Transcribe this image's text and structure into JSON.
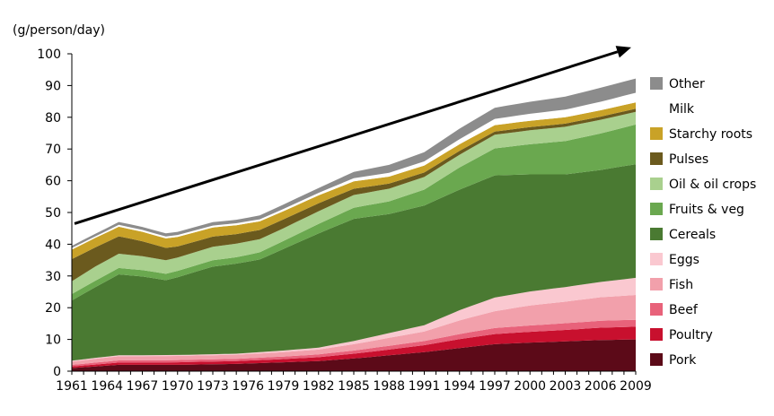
{
  "chart_data": {
    "type": "area",
    "stacked": true,
    "ylabel": "(g/person/day)",
    "ylim": [
      0,
      100
    ],
    "yticks": [
      0,
      10,
      20,
      30,
      40,
      50,
      60,
      70,
      80,
      90,
      100
    ],
    "xlim": [
      1961,
      2009
    ],
    "xticks": [
      1961,
      1964,
      1967,
      1970,
      1973,
      1976,
      1979,
      1982,
      1985,
      1988,
      1991,
      1994,
      1997,
      2000,
      2003,
      2006,
      2009
    ],
    "legend_position": "right",
    "trend_arrow": {
      "from": [
        1961,
        46.5
      ],
      "to": [
        2009,
        102
      ]
    },
    "series": [
      {
        "name": "Pork",
        "color": "#5c0a18",
        "values": [
          {
            "x": 1961,
            "y": 1.0
          },
          {
            "x": 1963,
            "y": 1.5
          },
          {
            "x": 1965,
            "y": 2.0
          },
          {
            "x": 1970,
            "y": 2.0
          },
          {
            "x": 1975,
            "y": 2.3
          },
          {
            "x": 1979,
            "y": 2.8
          },
          {
            "x": 1982,
            "y": 3.2
          },
          {
            "x": 1985,
            "y": 4.0
          },
          {
            "x": 1988,
            "y": 5.0
          },
          {
            "x": 1991,
            "y": 6.0
          },
          {
            "x": 1994,
            "y": 7.3
          },
          {
            "x": 1997,
            "y": 8.5
          },
          {
            "x": 2000,
            "y": 9.0
          },
          {
            "x": 2003,
            "y": 9.4
          },
          {
            "x": 2006,
            "y": 9.8
          },
          {
            "x": 2009,
            "y": 10.0
          }
        ]
      },
      {
        "name": "Poultry",
        "color": "#c8102e",
        "values": [
          {
            "x": 1961,
            "y": 0.5
          },
          {
            "x": 1963,
            "y": 0.6
          },
          {
            "x": 1965,
            "y": 0.7
          },
          {
            "x": 1970,
            "y": 0.8
          },
          {
            "x": 1975,
            "y": 0.9
          },
          {
            "x": 1979,
            "y": 1.0
          },
          {
            "x": 1982,
            "y": 1.2
          },
          {
            "x": 1985,
            "y": 1.5
          },
          {
            "x": 1988,
            "y": 1.8
          },
          {
            "x": 1991,
            "y": 2.2
          },
          {
            "x": 1994,
            "y": 2.8
          },
          {
            "x": 1997,
            "y": 3.2
          },
          {
            "x": 2000,
            "y": 3.4
          },
          {
            "x": 2003,
            "y": 3.6
          },
          {
            "x": 2006,
            "y": 3.9
          },
          {
            "x": 2009,
            "y": 4.0
          }
        ]
      },
      {
        "name": "Beef",
        "color": "#e8627a",
        "values": [
          {
            "x": 1961,
            "y": 0.5
          },
          {
            "x": 1963,
            "y": 0.6
          },
          {
            "x": 1965,
            "y": 0.7
          },
          {
            "x": 1970,
            "y": 0.7
          },
          {
            "x": 1975,
            "y": 0.7
          },
          {
            "x": 1979,
            "y": 0.8
          },
          {
            "x": 1982,
            "y": 0.9
          },
          {
            "x": 1985,
            "y": 1.0
          },
          {
            "x": 1988,
            "y": 1.2
          },
          {
            "x": 1991,
            "y": 1.3
          },
          {
            "x": 1994,
            "y": 1.6
          },
          {
            "x": 1997,
            "y": 1.9
          },
          {
            "x": 2000,
            "y": 2.0
          },
          {
            "x": 2003,
            "y": 2.1
          },
          {
            "x": 2006,
            "y": 2.2
          },
          {
            "x": 2009,
            "y": 2.2
          }
        ]
      },
      {
        "name": "Fish",
        "color": "#f2a0ab",
        "values": [
          {
            "x": 1961,
            "y": 1.0
          },
          {
            "x": 1963,
            "y": 1.2
          },
          {
            "x": 1965,
            "y": 1.3
          },
          {
            "x": 1970,
            "y": 1.3
          },
          {
            "x": 1975,
            "y": 1.3
          },
          {
            "x": 1979,
            "y": 1.4
          },
          {
            "x": 1982,
            "y": 1.5
          },
          {
            "x": 1985,
            "y": 2.0
          },
          {
            "x": 1988,
            "y": 2.5
          },
          {
            "x": 1991,
            "y": 3.0
          },
          {
            "x": 1994,
            "y": 4.3
          },
          {
            "x": 1997,
            "y": 5.3
          },
          {
            "x": 2000,
            "y": 6.3
          },
          {
            "x": 2003,
            "y": 6.8
          },
          {
            "x": 2006,
            "y": 7.4
          },
          {
            "x": 2009,
            "y": 7.8
          }
        ]
      },
      {
        "name": "Eggs",
        "color": "#fac8d0",
        "values": [
          {
            "x": 1961,
            "y": 0.3
          },
          {
            "x": 1963,
            "y": 0.3
          },
          {
            "x": 1965,
            "y": 0.3
          },
          {
            "x": 1970,
            "y": 0.3
          },
          {
            "x": 1975,
            "y": 0.3
          },
          {
            "x": 1979,
            "y": 0.5
          },
          {
            "x": 1982,
            "y": 0.6
          },
          {
            "x": 1985,
            "y": 1.0
          },
          {
            "x": 1988,
            "y": 1.5
          },
          {
            "x": 1991,
            "y": 2.0
          },
          {
            "x": 1994,
            "y": 3.2
          },
          {
            "x": 1997,
            "y": 4.3
          },
          {
            "x": 2000,
            "y": 4.4
          },
          {
            "x": 2003,
            "y": 4.6
          },
          {
            "x": 2006,
            "y": 4.8
          },
          {
            "x": 2009,
            "y": 5.4
          }
        ]
      },
      {
        "name": "Cereals",
        "color": "#4a7a32",
        "values": [
          {
            "x": 1961,
            "y": 19.0
          },
          {
            "x": 1963,
            "y": 22.3
          },
          {
            "x": 1965,
            "y": 25.5
          },
          {
            "x": 1967,
            "y": 24.8
          },
          {
            "x": 1969,
            "y": 23.6
          },
          {
            "x": 1970,
            "y": 24.5
          },
          {
            "x": 1973,
            "y": 27.6
          },
          {
            "x": 1976,
            "y": 28.8
          },
          {
            "x": 1977,
            "y": 29.2
          },
          {
            "x": 1979,
            "y": 32.0
          },
          {
            "x": 1982,
            "y": 36.0
          },
          {
            "x": 1985,
            "y": 38.5
          },
          {
            "x": 1988,
            "y": 37.5
          },
          {
            "x": 1991,
            "y": 37.7
          },
          {
            "x": 1994,
            "y": 38.0
          },
          {
            "x": 1997,
            "y": 38.5
          },
          {
            "x": 2000,
            "y": 36.9
          },
          {
            "x": 2003,
            "y": 35.5
          },
          {
            "x": 2006,
            "y": 35.3
          },
          {
            "x": 2009,
            "y": 35.8
          }
        ]
      },
      {
        "name": "Fruits & veg",
        "color": "#6aa84f",
        "values": [
          {
            "x": 1961,
            "y": 2.0
          },
          {
            "x": 1963,
            "y": 2.0
          },
          {
            "x": 1965,
            "y": 2.0
          },
          {
            "x": 1970,
            "y": 2.0
          },
          {
            "x": 1975,
            "y": 2.0
          },
          {
            "x": 1979,
            "y": 2.5
          },
          {
            "x": 1982,
            "y": 3.0
          },
          {
            "x": 1985,
            "y": 3.5
          },
          {
            "x": 1988,
            "y": 4.0
          },
          {
            "x": 1991,
            "y": 5.0
          },
          {
            "x": 1994,
            "y": 7.0
          },
          {
            "x": 1997,
            "y": 8.5
          },
          {
            "x": 2000,
            "y": 9.5
          },
          {
            "x": 2003,
            "y": 10.5
          },
          {
            "x": 2006,
            "y": 11.5
          },
          {
            "x": 2009,
            "y": 12.5
          }
        ]
      },
      {
        "name": "Oil & oil crops",
        "color": "#a9d08e",
        "values": [
          {
            "x": 1961,
            "y": 4.0
          },
          {
            "x": 1963,
            "y": 4.5
          },
          {
            "x": 1965,
            "y": 4.5
          },
          {
            "x": 1970,
            "y": 4.2
          },
          {
            "x": 1975,
            "y": 4.3
          },
          {
            "x": 1979,
            "y": 4.0
          },
          {
            "x": 1982,
            "y": 4.0
          },
          {
            "x": 1985,
            "y": 4.0
          },
          {
            "x": 1988,
            "y": 4.0
          },
          {
            "x": 1991,
            "y": 4.0
          },
          {
            "x": 1994,
            "y": 4.0
          },
          {
            "x": 1997,
            "y": 4.3
          },
          {
            "x": 2000,
            "y": 4.4
          },
          {
            "x": 2003,
            "y": 4.5
          },
          {
            "x": 2006,
            "y": 4.3
          },
          {
            "x": 2009,
            "y": 4.0
          }
        ]
      },
      {
        "name": "Pulses",
        "color": "#6b5a1e",
        "values": [
          {
            "x": 1961,
            "y": 7.0
          },
          {
            "x": 1963,
            "y": 6.0
          },
          {
            "x": 1965,
            "y": 5.5
          },
          {
            "x": 1970,
            "y": 3.5
          },
          {
            "x": 1975,
            "y": 3.0
          },
          {
            "x": 1979,
            "y": 2.8
          },
          {
            "x": 1982,
            "y": 2.5
          },
          {
            "x": 1985,
            "y": 2.0
          },
          {
            "x": 1988,
            "y": 1.6
          },
          {
            "x": 1991,
            "y": 1.4
          },
          {
            "x": 1994,
            "y": 1.2
          },
          {
            "x": 1997,
            "y": 1.0
          },
          {
            "x": 2000,
            "y": 1.0
          },
          {
            "x": 2003,
            "y": 1.0
          },
          {
            "x": 2006,
            "y": 1.0
          },
          {
            "x": 2009,
            "y": 1.0
          }
        ]
      },
      {
        "name": "Starchy roots",
        "color": "#c9a227",
        "values": [
          {
            "x": 1961,
            "y": 3.0
          },
          {
            "x": 1963,
            "y": 3.0
          },
          {
            "x": 1965,
            "y": 3.0
          },
          {
            "x": 1970,
            "y": 3.0
          },
          {
            "x": 1975,
            "y": 2.8
          },
          {
            "x": 1979,
            "y": 2.6
          },
          {
            "x": 1982,
            "y": 2.5
          },
          {
            "x": 1985,
            "y": 2.3
          },
          {
            "x": 1988,
            "y": 2.2
          },
          {
            "x": 1991,
            "y": 2.2
          },
          {
            "x": 1994,
            "y": 2.1
          },
          {
            "x": 1997,
            "y": 2.0
          },
          {
            "x": 2000,
            "y": 2.0
          },
          {
            "x": 2003,
            "y": 2.0
          },
          {
            "x": 2006,
            "y": 2.0
          },
          {
            "x": 2009,
            "y": 2.0
          }
        ]
      },
      {
        "name": "Milk",
        "color": "#ffffff",
        "values": [
          {
            "x": 1961,
            "y": 0.5
          },
          {
            "x": 1963,
            "y": 0.5
          },
          {
            "x": 1965,
            "y": 0.6
          },
          {
            "x": 1970,
            "y": 0.6
          },
          {
            "x": 1975,
            "y": 0.6
          },
          {
            "x": 1979,
            "y": 0.7
          },
          {
            "x": 1982,
            "y": 0.8
          },
          {
            "x": 1985,
            "y": 1.0
          },
          {
            "x": 1988,
            "y": 1.2
          },
          {
            "x": 1991,
            "y": 1.3
          },
          {
            "x": 1994,
            "y": 1.6
          },
          {
            "x": 1997,
            "y": 2.0
          },
          {
            "x": 2000,
            "y": 2.2
          },
          {
            "x": 2003,
            "y": 2.4
          },
          {
            "x": 2006,
            "y": 2.7
          },
          {
            "x": 2009,
            "y": 3.0
          }
        ]
      },
      {
        "name": "Other",
        "color": "#8c8c8c",
        "values": [
          {
            "x": 1961,
            "y": 0.7
          },
          {
            "x": 1963,
            "y": 0.8
          },
          {
            "x": 1965,
            "y": 0.9
          },
          {
            "x": 1970,
            "y": 1.0
          },
          {
            "x": 1975,
            "y": 1.1
          },
          {
            "x": 1979,
            "y": 1.4
          },
          {
            "x": 1982,
            "y": 1.5
          },
          {
            "x": 1985,
            "y": 2.0
          },
          {
            "x": 1988,
            "y": 2.5
          },
          {
            "x": 1991,
            "y": 2.9
          },
          {
            "x": 1994,
            "y": 3.3
          },
          {
            "x": 1997,
            "y": 3.5
          },
          {
            "x": 2000,
            "y": 3.8
          },
          {
            "x": 2003,
            "y": 4.1
          },
          {
            "x": 2006,
            "y": 4.4
          },
          {
            "x": 2009,
            "y": 4.5
          }
        ]
      }
    ]
  }
}
